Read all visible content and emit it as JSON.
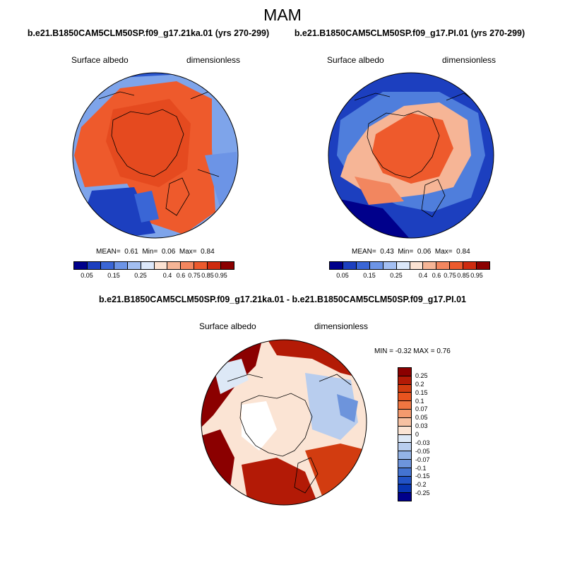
{
  "season": "MAM",
  "panels": [
    {
      "title": "b.e21.B1850CAM5CLM50SP.f09_g17.21ka.01 (yrs 270-299)",
      "left_label": "Surface albedo",
      "right_label": "dimensionless",
      "mean_label": "MEAN=",
      "mean_value": "0.61",
      "min_label": "Min=",
      "min_value": "0.06",
      "max_label": "Max=",
      "max_value": "0.84"
    },
    {
      "title": "b.e21.B1850CAM5CLM50SP.f09_g17.PI.01 (yrs 270-299)",
      "left_label": "Surface albedo",
      "right_label": "dimensionless",
      "mean_label": "MEAN=",
      "mean_value": "0.43",
      "min_label": "Min=",
      "min_value": "0.06",
      "max_label": "Max=",
      "max_value": "0.84"
    }
  ],
  "diff_panel": {
    "title": "b.e21.B1850CAM5CLM50SP.f09_g17.21ka.01 - b.e21.B1850CAM5CLM50SP.f09_g17.PI.01",
    "left_label": "Surface albedo",
    "right_label": "dimensionless",
    "stats": "MIN = -0.32 MAX = 0.76"
  },
  "abs_colorbar": {
    "colors": [
      "#00008b",
      "#1c3fbf",
      "#3a66d6",
      "#6c94e6",
      "#a3bff2",
      "#dce8fa",
      "#fbe2d2",
      "#f6b596",
      "#f2865f",
      "#ec5a2d",
      "#ce2b0f",
      "#8b0000"
    ],
    "labels": [
      "0.05",
      "0.15",
      "0.25",
      "0.4",
      "0.6",
      "0.75",
      "0.85",
      "0.95"
    ]
  },
  "diff_colorbar": {
    "colors": [
      "#8b0000",
      "#b31a06",
      "#d23c10",
      "#e8541f",
      "#f07641",
      "#f39a6e",
      "#f7c1a2",
      "#fbe4d4",
      "#dde8f6",
      "#b8cdee",
      "#93b3e6",
      "#6d94dc",
      "#4473d1",
      "#2253c6",
      "#0835b2",
      "#00008b"
    ],
    "labels": [
      "0.25",
      "0.2",
      "0.15",
      "0.1",
      "0.07",
      "0.05",
      "0.03",
      "0",
      "-0.03",
      "-0.05",
      "-0.07",
      "-0.1",
      "-0.15",
      "-0.2",
      "-0.25"
    ]
  }
}
